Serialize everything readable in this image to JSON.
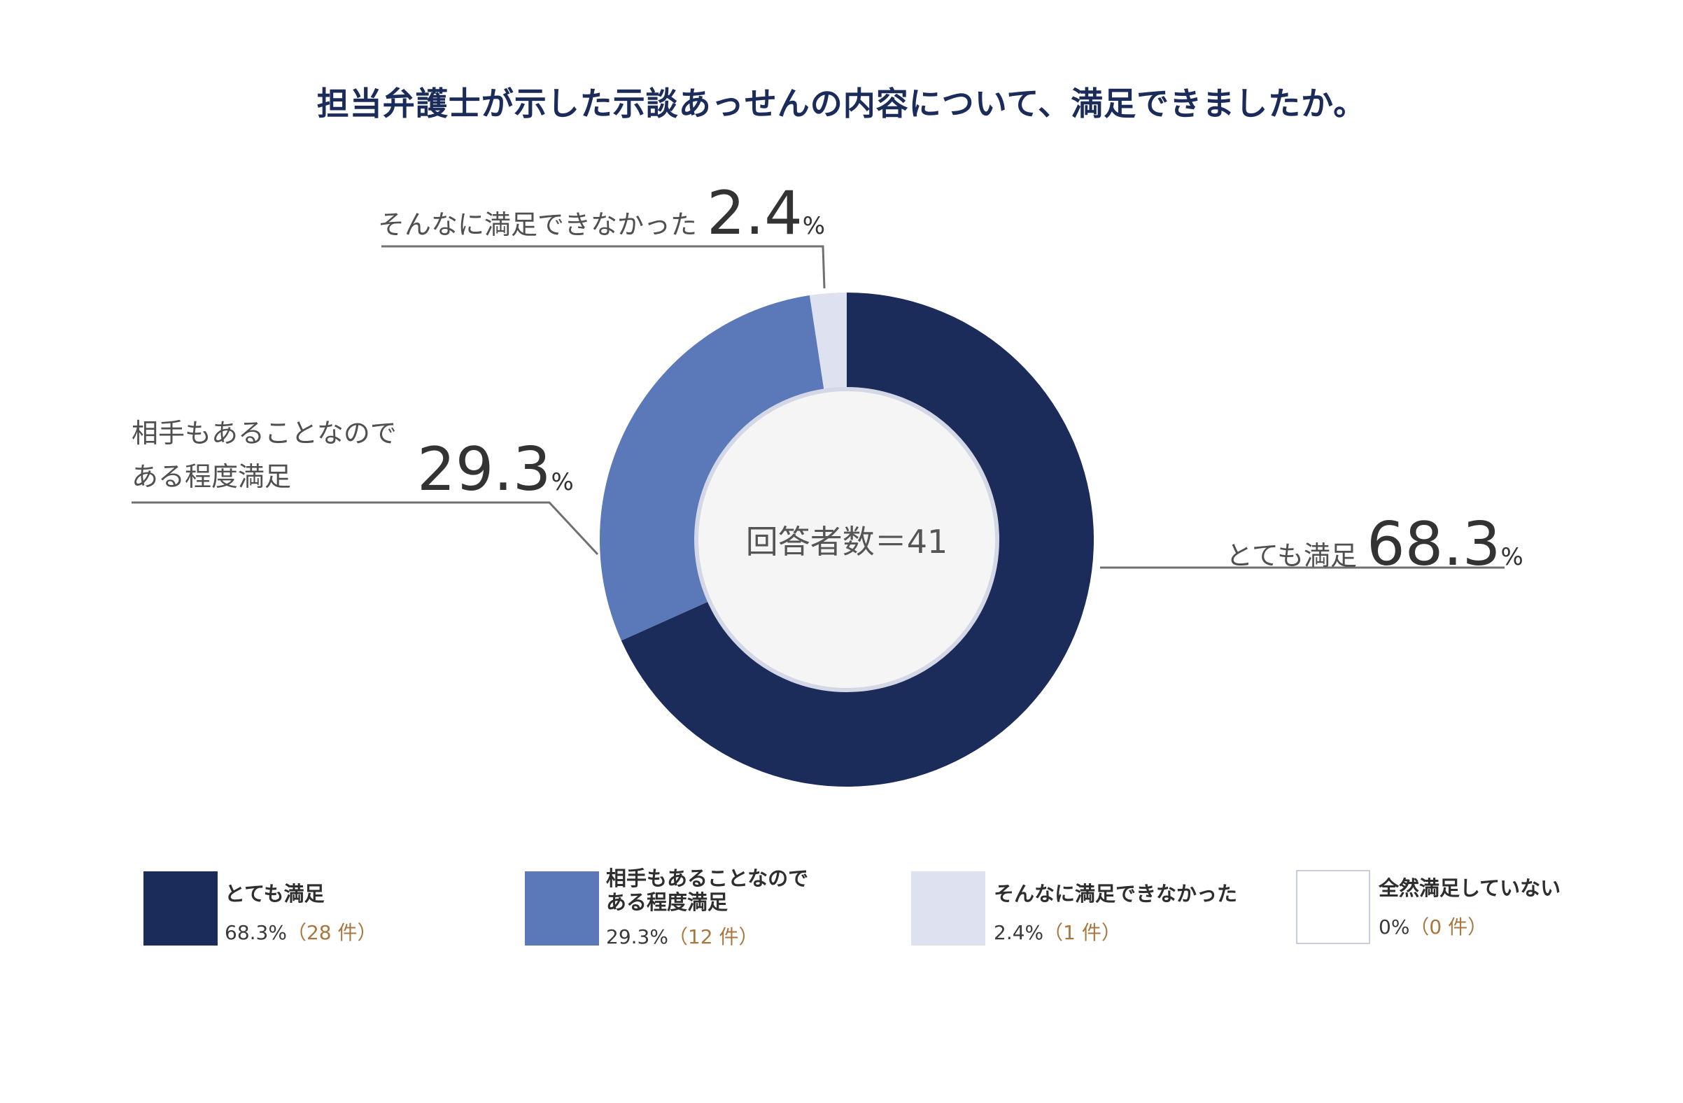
{
  "title": "担当弁護士が示した示談あっせんの内容について、満足できましたか。",
  "center_label": "回答者数＝41",
  "colors": {
    "very_satisfied": "#1b2c5a",
    "somewhat_satisfied": "#5b78b9",
    "not_very_satisfied": "#dde1f0",
    "not_satisfied": "#ffffff",
    "center_fill": "#f5f5f5",
    "center_ring": "#d3d7e6",
    "leader_line": "#707070"
  },
  "callouts": {
    "very_satisfied": {
      "label": "とても満足",
      "pct": "68.3",
      "unit": "%"
    },
    "somewhat_satisfied": {
      "label_line1": "相手もあることなので",
      "label_line2": "ある程度満足",
      "pct": "29.3",
      "unit": "%"
    },
    "not_very_satisfied": {
      "label": "そんなに満足できなかった",
      "pct": "2.4",
      "unit": "%"
    }
  },
  "legend": [
    {
      "label": "とても満足",
      "label2": "",
      "pct": "68.3%",
      "count": "（28 件）"
    },
    {
      "label": "相手もあることなので",
      "label2": "ある程度満足",
      "pct": "29.3%",
      "count": "（12 件）"
    },
    {
      "label": "そんなに満足できなかった",
      "label2": "",
      "pct": "2.4%",
      "count": "（1 件）"
    },
    {
      "label": "全然満足していない",
      "label2": "",
      "pct": "0%",
      "count": "（0 件）"
    }
  ],
  "chart_data": {
    "type": "pie",
    "variant": "donut",
    "title": "担当弁護士が示した示談あっせんの内容について、満足できましたか。",
    "total_respondents": 41,
    "categories": [
      "とても満足",
      "相手もあることなのである程度満足",
      "そんなに満足できなかった",
      "全然満足していない"
    ],
    "values": [
      68.3,
      29.3,
      2.4,
      0
    ],
    "counts": [
      28,
      12,
      1,
      0
    ],
    "unit": "%"
  }
}
